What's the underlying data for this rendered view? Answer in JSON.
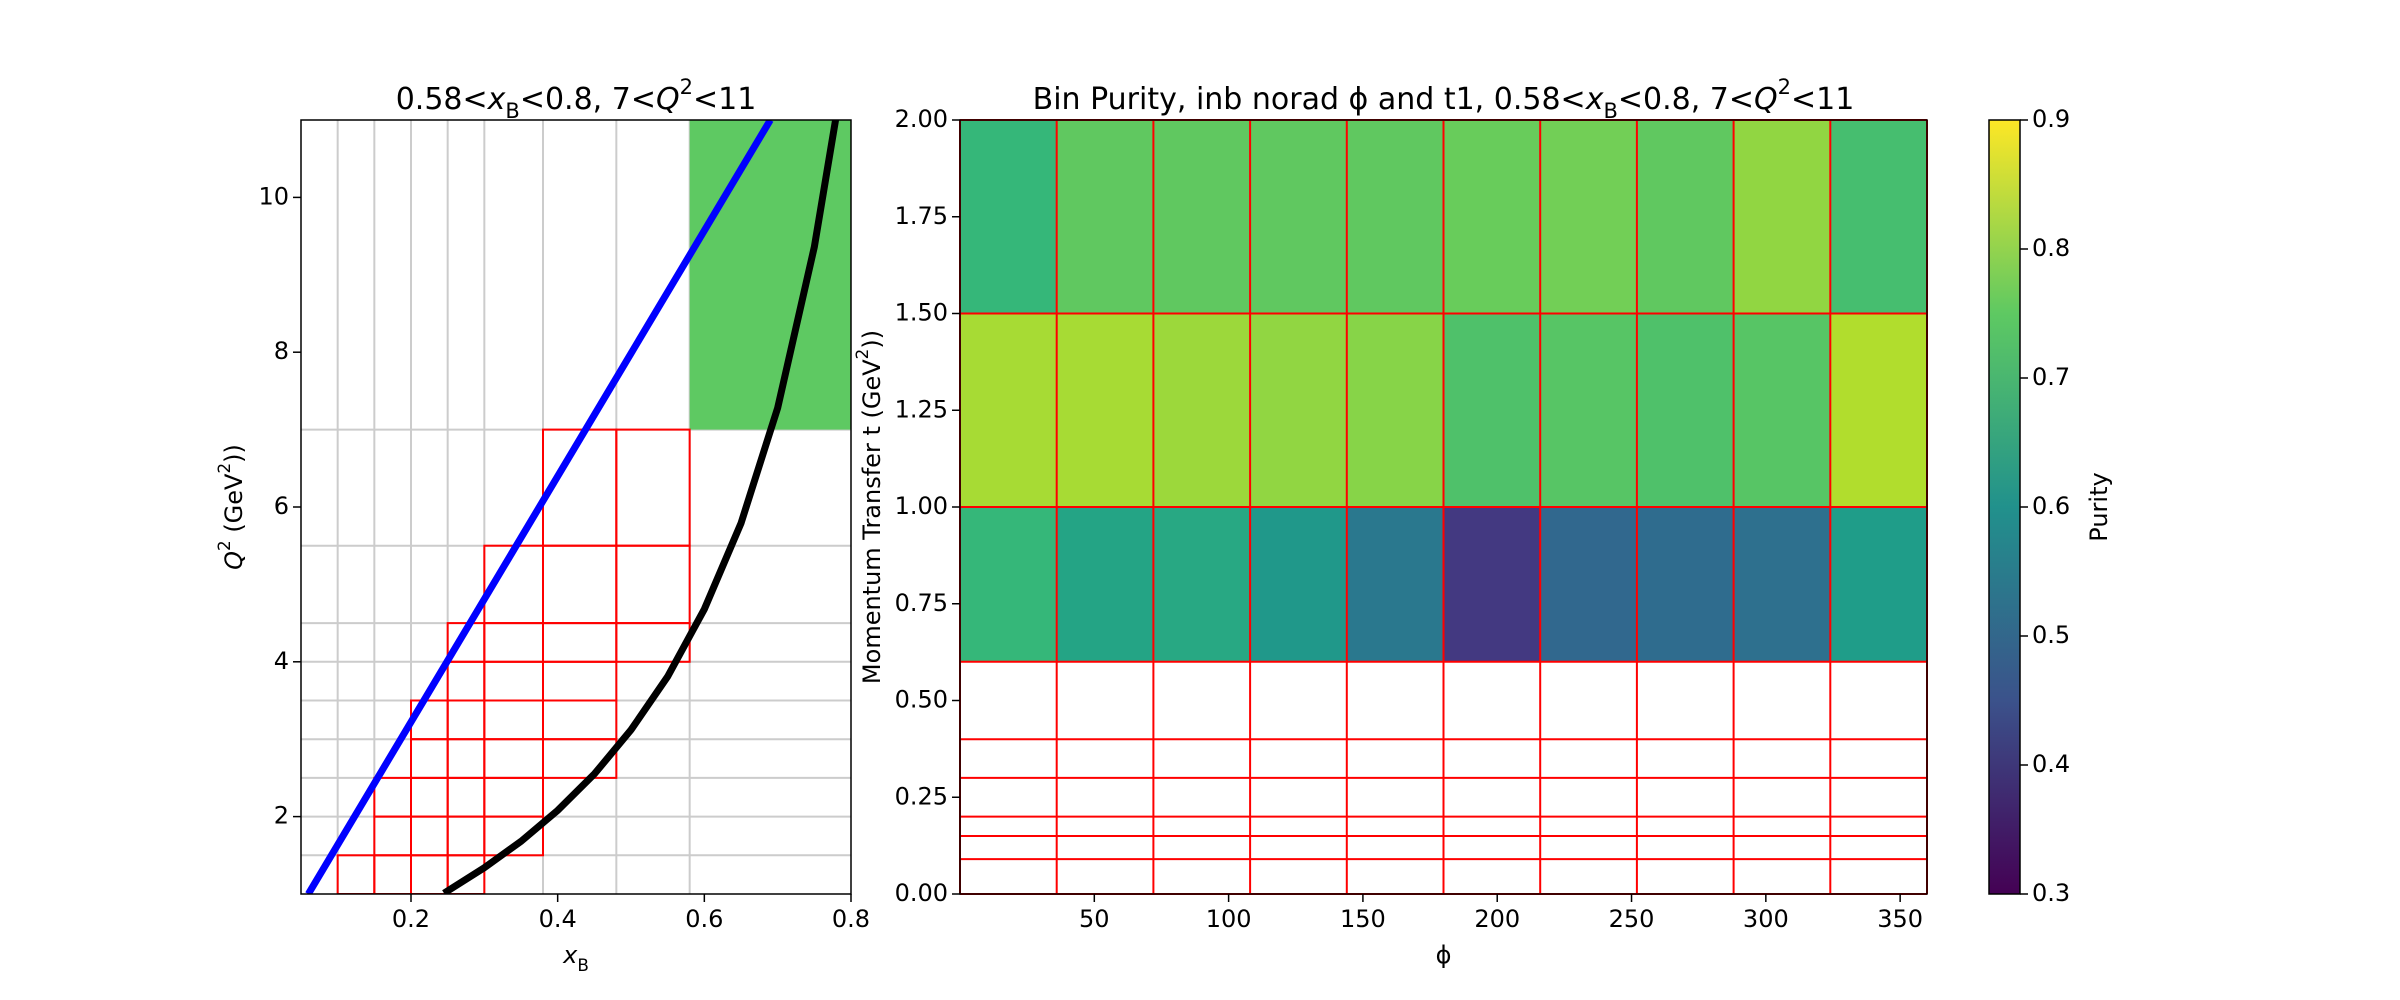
{
  "chart_data": [
    {
      "type": "bin-map",
      "title": "0.58<x_B<0.8, 7<Q^2<11",
      "xlabel": "x_B",
      "ylabel": "Q^2 (GeV^2))",
      "xlim": [
        0.05,
        0.8
      ],
      "ylim": [
        1,
        11
      ],
      "xticks": [
        0.2,
        0.4,
        0.6,
        0.8
      ],
      "yticks": [
        2,
        4,
        6,
        8,
        10
      ],
      "xgrid": [
        0.1,
        0.15,
        0.2,
        0.25,
        0.3,
        0.38,
        0.48,
        0.58
      ],
      "ygrid": [
        1.5,
        2,
        2.5,
        3,
        3.5,
        4,
        4.5,
        5.5,
        7
      ],
      "grid_color": "#cccccc",
      "cell_color": "#ff0000",
      "cells": [
        [
          0.1,
          0.15,
          1,
          1.5
        ],
        [
          0.15,
          0.2,
          1,
          1.5
        ],
        [
          0.2,
          0.25,
          1,
          1.5
        ],
        [
          0.25,
          0.3,
          1,
          1.5
        ],
        [
          0.15,
          0.2,
          1.5,
          2
        ],
        [
          0.2,
          0.25,
          1.5,
          2
        ],
        [
          0.25,
          0.3,
          1.5,
          2
        ],
        [
          0.3,
          0.38,
          1.5,
          2
        ],
        [
          0.15,
          0.2,
          2,
          2.5
        ],
        [
          0.2,
          0.25,
          2,
          2.5
        ],
        [
          0.25,
          0.3,
          2,
          2.5
        ],
        [
          0.3,
          0.38,
          2,
          2.5
        ],
        [
          0.2,
          0.25,
          2.5,
          3
        ],
        [
          0.25,
          0.3,
          2.5,
          3
        ],
        [
          0.3,
          0.38,
          2.5,
          3
        ],
        [
          0.38,
          0.48,
          2.5,
          3
        ],
        [
          0.2,
          0.25,
          3,
          3.5
        ],
        [
          0.25,
          0.3,
          3,
          3.5
        ],
        [
          0.3,
          0.38,
          3,
          3.5
        ],
        [
          0.38,
          0.48,
          3,
          3.5
        ],
        [
          0.25,
          0.3,
          3.5,
          4
        ],
        [
          0.3,
          0.38,
          3.5,
          4
        ],
        [
          0.38,
          0.48,
          3.5,
          4
        ],
        [
          0.25,
          0.3,
          4,
          4.5
        ],
        [
          0.3,
          0.38,
          4,
          4.5
        ],
        [
          0.38,
          0.48,
          4,
          4.5
        ],
        [
          0.48,
          0.58,
          4,
          4.5
        ],
        [
          0.3,
          0.38,
          4.5,
          5.5
        ],
        [
          0.38,
          0.48,
          4.5,
          5.5
        ],
        [
          0.48,
          0.58,
          4.5,
          5.5
        ],
        [
          0.38,
          0.48,
          5.5,
          7
        ],
        [
          0.48,
          0.58,
          5.5,
          7
        ]
      ],
      "selected_bin": {
        "bounds": [
          0.58,
          0.8,
          7,
          11
        ],
        "color": "#5ec962"
      },
      "lines": [
        {
          "color": "#0000ff",
          "x": [
            0.06,
            0.69
          ],
          "values": [
            1,
            11
          ]
        },
        {
          "color": "#000000",
          "x": [
            0.245,
            0.3,
            0.35,
            0.4,
            0.45,
            0.5,
            0.55,
            0.6,
            0.65,
            0.7,
            0.75,
            0.78
          ],
          "values": [
            1.01,
            1.34,
            1.68,
            2.08,
            2.55,
            3.12,
            3.81,
            4.68,
            5.79,
            7.28,
            9.36,
            11.06
          ]
        }
      ]
    },
    {
      "type": "heatmap",
      "title": "Bin Purity, inb norad ϕ and t1, 0.58<x_B<0.8, 7<Q^2<11",
      "xlabel": "ϕ",
      "ylabel": "Momentum Transfer t (GeV^2))",
      "xlim": [
        0,
        360
      ],
      "ylim": [
        0,
        2
      ],
      "xticks": [
        50,
        100,
        150,
        200,
        250,
        300,
        350
      ],
      "yticks": [
        {
          "value": 0,
          "label": "0.00"
        },
        {
          "value": 0.25,
          "label": "0.25"
        },
        {
          "value": 0.5,
          "label": "0.50"
        },
        {
          "value": 0.75,
          "label": "0.75"
        },
        {
          "value": 1,
          "label": "1.00"
        },
        {
          "value": 1.25,
          "label": "1.25"
        },
        {
          "value": 1.5,
          "label": "1.50"
        },
        {
          "value": 1.75,
          "label": "1.75"
        },
        {
          "value": 2,
          "label": "2.00"
        }
      ],
      "x_edges": [
        0,
        36,
        72,
        108,
        144,
        180,
        216,
        252,
        288,
        324,
        360
      ],
      "y_edges": [
        0,
        0.09,
        0.15,
        0.2,
        0.3,
        0.4,
        0.6,
        1,
        1.5,
        2
      ],
      "edge_color": "#ff0000",
      "values": [
        [
          null,
          null,
          null,
          null,
          null,
          null,
          null,
          null,
          null,
          null
        ],
        [
          null,
          null,
          null,
          null,
          null,
          null,
          null,
          null,
          null,
          null
        ],
        [
          null,
          null,
          null,
          null,
          null,
          null,
          null,
          null,
          null,
          null
        ],
        [
          null,
          null,
          null,
          null,
          null,
          null,
          null,
          null,
          null,
          null
        ],
        [
          null,
          null,
          null,
          null,
          null,
          null,
          null,
          null,
          null,
          null
        ],
        [
          null,
          null,
          null,
          null,
          null,
          null,
          null,
          null,
          null,
          null
        ],
        [
          0.7,
          0.65,
          0.66,
          0.62,
          0.54,
          0.4,
          0.5,
          0.51,
          0.52,
          0.63
        ],
        [
          0.82,
          0.82,
          0.81,
          0.8,
          0.79,
          0.73,
          0.74,
          0.73,
          0.74,
          0.83
        ],
        [
          0.7,
          0.75,
          0.75,
          0.75,
          0.75,
          0.76,
          0.77,
          0.75,
          0.8,
          0.72
        ]
      ],
      "colorbar": {
        "label": "Purity",
        "colormap": "viridis",
        "lim": [
          0.3,
          0.9
        ],
        "ticks": [
          0.3,
          0.4,
          0.5,
          0.6,
          0.7,
          0.8,
          0.9
        ]
      }
    }
  ]
}
